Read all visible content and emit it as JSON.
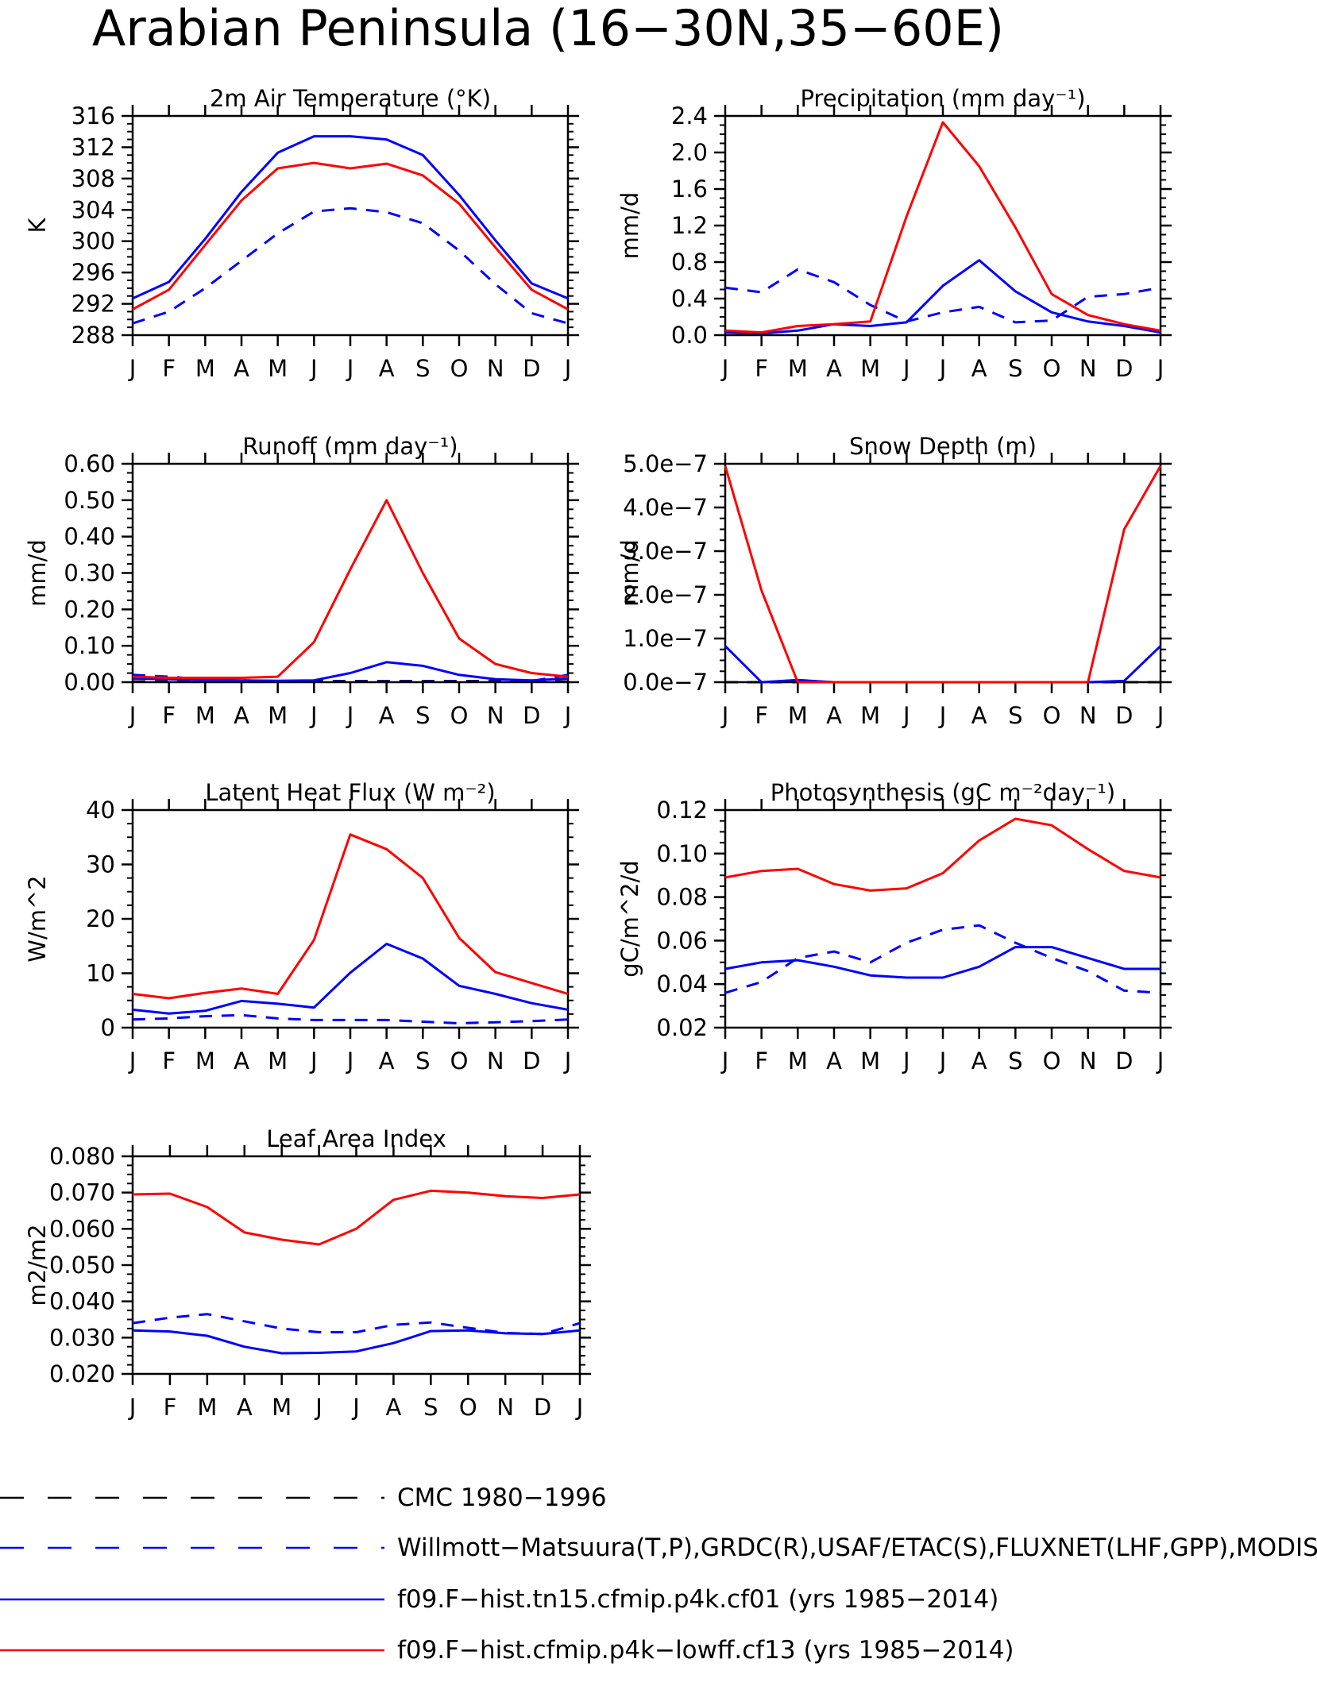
{
  "title": "Arabian Peninsula (16−30N,35−60E)",
  "months": [
    "J",
    "F",
    "M",
    "A",
    "M",
    "J",
    "J",
    "A",
    "S",
    "O",
    "N",
    "D",
    "J"
  ],
  "colors": {
    "obs": "#0000ff",
    "model_blue": "#0000ff",
    "model_red": "#ff0000",
    "cmc": "#000000"
  },
  "legend": [
    {
      "label": "CMC 1980−1996",
      "color": "#000000",
      "style": "dashed"
    },
    {
      "label": "Willmott−Matsuura(T,P),GRDC(R),USAF/ETAC(S),FLUXNET(LHF,GPP),MODIS(",
      "color": "#0000ff",
      "style": "dashed"
    },
    {
      "label": "f09.F−hist.tn15.cfmip.p4k.cf01 (yrs 1985−2014)",
      "color": "#0000ff",
      "style": "solid"
    },
    {
      "label": "f09.F−hist.cfmip.p4k−lowff.cf13 (yrs 1985−2014)",
      "color": "#ff0000",
      "style": "solid"
    }
  ],
  "chart_data": [
    {
      "type": "line",
      "title": "2m Air Temperature (°K)",
      "ylabel": "K",
      "ylim": [
        288,
        316
      ],
      "yticks": [
        "288",
        "292",
        "296",
        "300",
        "304",
        "308",
        "312",
        "316"
      ],
      "series": [
        {
          "style": "dashed",
          "color": "#0000ff",
          "values": [
            289.5,
            291,
            294,
            297.5,
            301,
            303.8,
            304.2,
            303.7,
            302.3,
            298.8,
            294.5,
            290.8,
            289.5
          ]
        },
        {
          "style": "solid",
          "color": "#0000ff",
          "values": [
            292.7,
            294.8,
            300.3,
            306.3,
            311.3,
            313.4,
            313.4,
            313,
            311,
            305.9,
            300.1,
            294.6,
            292.7
          ]
        },
        {
          "style": "solid",
          "color": "#ff0000",
          "values": [
            291.3,
            293.8,
            299.5,
            305.2,
            309.3,
            310,
            309.3,
            309.9,
            308.4,
            304.8,
            299.2,
            293.8,
            291.3
          ]
        }
      ]
    },
    {
      "type": "line",
      "title": "Precipitation (mm day⁻¹)",
      "ylabel": "mm/d",
      "ylim": [
        0,
        2.4
      ],
      "yticks": [
        "0.0",
        "0.4",
        "0.8",
        "1.2",
        "1.6",
        "2.0",
        "2.4"
      ],
      "series": [
        {
          "style": "dashed",
          "color": "#0000ff",
          "values": [
            0.52,
            0.47,
            0.72,
            0.58,
            0.33,
            0.15,
            0.25,
            0.31,
            0.14,
            0.16,
            0.42,
            0.45,
            0.52
          ]
        },
        {
          "style": "solid",
          "color": "#0000ff",
          "values": [
            0.03,
            0.02,
            0.05,
            0.12,
            0.1,
            0.14,
            0.54,
            0.82,
            0.48,
            0.25,
            0.15,
            0.1,
            0.03
          ]
        },
        {
          "style": "solid",
          "color": "#ff0000",
          "values": [
            0.05,
            0.03,
            0.1,
            0.12,
            0.15,
            1.3,
            2.33,
            1.85,
            1.18,
            0.45,
            0.22,
            0.12,
            0.05
          ]
        }
      ]
    },
    {
      "type": "line",
      "title": "Runoff (mm day⁻¹)",
      "ylabel": "mm/d",
      "ylim": [
        0,
        0.6
      ],
      "yticks": [
        "0.00",
        "0.10",
        "0.20",
        "0.30",
        "0.40",
        "0.50",
        "0.60"
      ],
      "series": [
        {
          "style": "dashed",
          "color": "#0000ff",
          "values": [
            0.02,
            0.015,
            0.008,
            0.005,
            0.003,
            0.003,
            0.003,
            0.003,
            0.003,
            0.003,
            0.003,
            0.003,
            0.02
          ]
        },
        {
          "style": "dashed",
          "color": "#000000",
          "values": [
            0.002,
            0.002,
            0.002,
            0.002,
            0.002,
            0.002,
            0.002,
            0.002,
            0.002,
            0.002,
            0.002,
            0.002,
            0.002
          ]
        },
        {
          "style": "solid",
          "color": "#0000ff",
          "values": [
            0.01,
            0.008,
            0.006,
            0.005,
            0.004,
            0.005,
            0.025,
            0.055,
            0.045,
            0.02,
            0.008,
            0.005,
            0.01
          ]
        },
        {
          "style": "solid",
          "color": "#ff0000",
          "values": [
            0.015,
            0.012,
            0.012,
            0.012,
            0.015,
            0.11,
            0.31,
            0.5,
            0.3,
            0.12,
            0.05,
            0.025,
            0.015
          ]
        }
      ]
    },
    {
      "type": "line",
      "title": "Snow Depth (m)",
      "ylabel": "mm/d",
      "ylim": [
        0,
        5e-07
      ],
      "yticks": [
        "0.0e−7",
        "1.0e−7",
        "2.0e−7",
        "3.0e−7",
        "4.0e−7",
        "5.0e−7"
      ],
      "series": [
        {
          "style": "dashed",
          "color": "#000000",
          "values": [
            0,
            0,
            0,
            0,
            0,
            0,
            0,
            0,
            0,
            0,
            0,
            0,
            0
          ]
        },
        {
          "style": "solid",
          "color": "#0000ff",
          "values": [
            8.3e-08,
            0,
            5e-09,
            0,
            0,
            0,
            0,
            0,
            0,
            0,
            0,
            3e-09,
            8.3e-08
          ]
        },
        {
          "style": "solid",
          "color": "#ff0000",
          "values": [
            4.95e-07,
            2.1e-07,
            0,
            0,
            0,
            0,
            0,
            0,
            0,
            0,
            0,
            3.5e-07,
            4.95e-07
          ]
        }
      ]
    },
    {
      "type": "line",
      "title": "Latent Heat Flux (W m⁻²)",
      "ylabel": "W/m^2",
      "ylim": [
        0,
        40
      ],
      "yticks": [
        "0",
        "10",
        "20",
        "30",
        "40"
      ],
      "series": [
        {
          "style": "dashed",
          "color": "#0000ff",
          "values": [
            1.5,
            1.7,
            2.1,
            2.3,
            1.7,
            1.4,
            1.4,
            1.4,
            1.1,
            0.8,
            1.0,
            1.2,
            1.5
          ]
        },
        {
          "style": "solid",
          "color": "#0000ff",
          "values": [
            3.3,
            2.6,
            3.1,
            4.9,
            4.4,
            3.7,
            10.1,
            15.4,
            12.7,
            7.7,
            6.2,
            4.5,
            3.3
          ]
        },
        {
          "style": "solid",
          "color": "#ff0000",
          "values": [
            6.2,
            5.4,
            6.4,
            7.2,
            6.2,
            16.1,
            35.5,
            32.8,
            27.5,
            16.5,
            10.2,
            8.2,
            6.2
          ]
        }
      ]
    },
    {
      "type": "line",
      "title": "Photosynthesis (gC m⁻²day⁻¹)",
      "ylabel": "gC/m^2/d",
      "ylim": [
        0.02,
        0.12
      ],
      "yticks": [
        "0.02",
        "0.04",
        "0.06",
        "0.08",
        "0.10",
        "0.12"
      ],
      "series": [
        {
          "style": "dashed",
          "color": "#0000ff",
          "values": [
            0.036,
            0.041,
            0.052,
            0.055,
            0.05,
            0.059,
            0.065,
            0.067,
            0.059,
            0.052,
            0.046,
            0.037,
            0.036
          ]
        },
        {
          "style": "solid",
          "color": "#0000ff",
          "values": [
            0.047,
            0.05,
            0.051,
            0.048,
            0.044,
            0.043,
            0.043,
            0.048,
            0.057,
            0.057,
            0.052,
            0.047,
            0.047
          ]
        },
        {
          "style": "solid",
          "color": "#ff0000",
          "values": [
            0.089,
            0.092,
            0.093,
            0.086,
            0.083,
            0.084,
            0.091,
            0.106,
            0.116,
            0.113,
            0.102,
            0.092,
            0.089
          ]
        }
      ]
    },
    {
      "type": "line",
      "title": "Leaf Area Index",
      "ylabel": "m2/m2",
      "ylim": [
        0.02,
        0.08
      ],
      "yticks": [
        "0.020",
        "0.030",
        "0.040",
        "0.050",
        "0.060",
        "0.070",
        "0.080"
      ],
      "series": [
        {
          "style": "dashed",
          "color": "#0000ff",
          "values": [
            0.034,
            0.0355,
            0.0365,
            0.0345,
            0.0325,
            0.0315,
            0.0315,
            0.0335,
            0.0342,
            0.0327,
            0.0313,
            0.031,
            0.034
          ]
        },
        {
          "style": "solid",
          "color": "#0000ff",
          "values": [
            0.032,
            0.0317,
            0.0305,
            0.0275,
            0.0257,
            0.0258,
            0.0262,
            0.0285,
            0.0318,
            0.032,
            0.0312,
            0.031,
            0.032
          ]
        },
        {
          "style": "solid",
          "color": "#ff0000",
          "values": [
            0.0695,
            0.0697,
            0.066,
            0.059,
            0.057,
            0.0557,
            0.06,
            0.068,
            0.0705,
            0.07,
            0.069,
            0.0685,
            0.0695
          ]
        }
      ]
    }
  ]
}
